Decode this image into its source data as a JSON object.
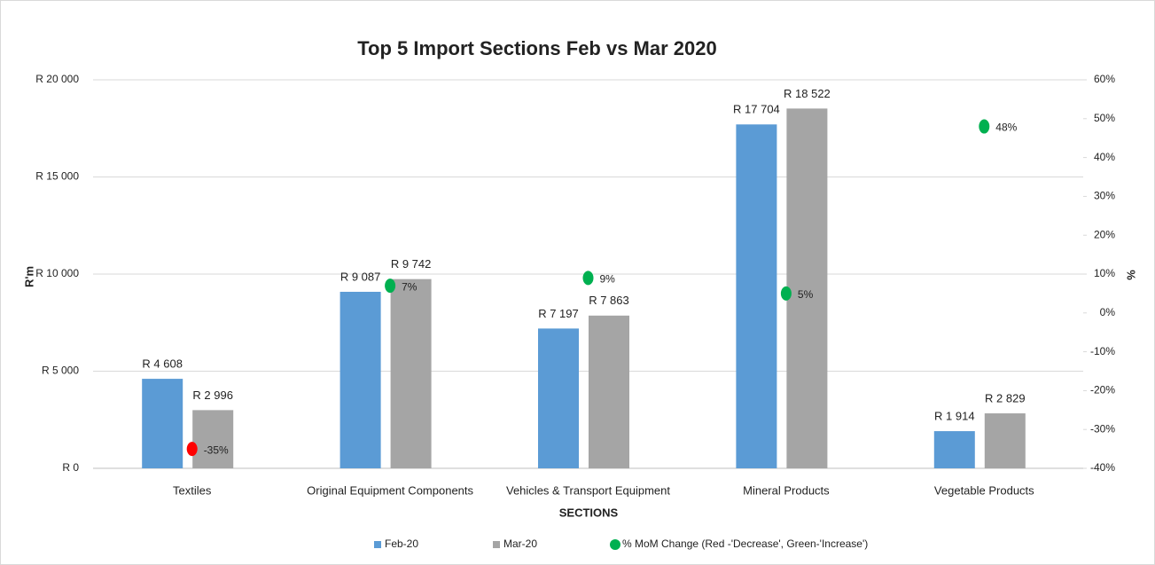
{
  "chart_data": {
    "type": "bar",
    "title": "Top 5 Import Sections Feb vs Mar 2020",
    "x_label": "SECTIONS",
    "y_label": "R'm",
    "y2_label": "%",
    "categories": [
      "Textiles",
      "Original Equipment Components",
      "Vehicles & Transport Equipment",
      "Mineral Products",
      "Vegetable Products"
    ],
    "series": [
      {
        "name": "Feb-20",
        "type": "bar",
        "color": "#5b9bd5",
        "values": [
          4608,
          9087,
          7197,
          17704,
          1914
        ],
        "value_labels": [
          "R 4 608",
          "R 9 087",
          "R 7 197",
          "R 17 704",
          "R 1 914"
        ]
      },
      {
        "name": "Mar-20",
        "type": "bar",
        "color": "#a5a5a5",
        "values": [
          2996,
          9742,
          7863,
          18522,
          2829
        ],
        "value_labels": [
          "R 2 996",
          "R 9 742",
          "R 7 863",
          "R 18 522",
          "R 2 829"
        ]
      },
      {
        "name": "% MoM Change (Red -'Decrease', Green-'Increase')",
        "type": "scatter",
        "axis": "y2",
        "color": "#00b050",
        "colors": [
          "#ff0000",
          "#00b050",
          "#00b050",
          "#00b050",
          "#00b050"
        ],
        "values": [
          -35,
          7,
          9,
          5,
          48
        ],
        "value_labels": [
          "-35%",
          "7%",
          "9%",
          "5%",
          "48%"
        ]
      }
    ],
    "ylim": [
      0,
      20000
    ],
    "yticks": [
      {
        "value": 0,
        "label": "R 0"
      },
      {
        "value": 5000,
        "label": "R 5 000"
      },
      {
        "value": 10000,
        "label": "R 10 000"
      },
      {
        "value": 15000,
        "label": "R 15 000"
      },
      {
        "value": 20000,
        "label": "R 20 000"
      }
    ],
    "y2lim": [
      -40,
      60
    ],
    "y2ticks": [
      {
        "value": -40,
        "label": "-40%"
      },
      {
        "value": -30,
        "label": "-30%"
      },
      {
        "value": -20,
        "label": "-20%"
      },
      {
        "value": -10,
        "label": "-10%"
      },
      {
        "value": 0,
        "label": "0%"
      },
      {
        "value": 10,
        "label": "10%"
      },
      {
        "value": 20,
        "label": "20%"
      },
      {
        "value": 30,
        "label": "30%"
      },
      {
        "value": 40,
        "label": "40%"
      },
      {
        "value": 50,
        "label": "50%"
      },
      {
        "value": 60,
        "label": "60%"
      }
    ],
    "grid": true,
    "legend": "bottom"
  }
}
